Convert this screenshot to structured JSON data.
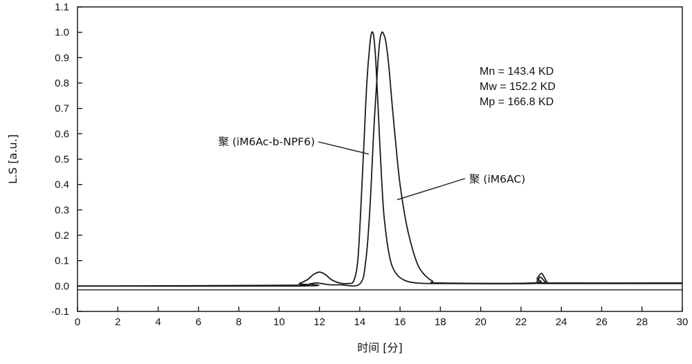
{
  "chart_data": {
    "type": "line",
    "title": "",
    "xlabel": "时间 [分]",
    "ylabel": "L.S [a.u.]",
    "xlim": [
      0,
      30
    ],
    "ylim": [
      -0.1,
      1.1
    ],
    "x_ticks": [
      0,
      2,
      4,
      6,
      8,
      10,
      12,
      14,
      16,
      18,
      20,
      22,
      24,
      26,
      28,
      30
    ],
    "y_ticks": [
      "-0.1",
      "0.0",
      "0.1",
      "0.2",
      "0.3",
      "0.4",
      "0.5",
      "0.6",
      "0.7",
      "0.8",
      "0.9",
      "1.0",
      "1.1"
    ],
    "grid": false,
    "baseline_line_y": -0.015,
    "series": [
      {
        "name": "聚 (iM6Ac-b-NPF6)",
        "x": [
          0,
          10.6,
          11.0,
          11.4,
          11.7,
          12.0,
          12.3,
          12.6,
          13.0,
          13.4,
          13.7,
          13.9,
          14.05,
          14.2,
          14.35,
          14.5,
          14.6,
          14.7,
          14.8,
          14.9,
          15.0,
          15.1,
          15.2,
          15.4,
          15.6,
          15.9,
          16.3,
          16.8,
          17.5,
          18.5,
          22.6,
          22.8,
          22.95,
          23.1,
          23.25,
          23.4,
          30
        ],
        "y": [
          0.0,
          0.003,
          0.01,
          0.025,
          0.045,
          0.055,
          0.045,
          0.025,
          0.012,
          0.01,
          0.02,
          0.1,
          0.3,
          0.55,
          0.8,
          0.95,
          1.0,
          0.98,
          0.88,
          0.72,
          0.55,
          0.4,
          0.28,
          0.15,
          0.08,
          0.04,
          0.02,
          0.012,
          0.01,
          0.01,
          0.01,
          0.02,
          0.035,
          0.025,
          0.012,
          0.01,
          0.01
        ]
      },
      {
        "name": "聚 (iM6AC)",
        "x": [
          0,
          11.0,
          11.5,
          11.8,
          12.1,
          12.5,
          13.0,
          14.0,
          14.3,
          14.5,
          14.7,
          14.9,
          15.0,
          15.1,
          15.2,
          15.3,
          15.45,
          15.6,
          15.8,
          16.0,
          16.3,
          16.6,
          16.9,
          17.2,
          17.6,
          18.0,
          22.6,
          22.8,
          23.0,
          23.15,
          23.3,
          23.5,
          30
        ],
        "y": [
          0.0,
          0.0,
          0.008,
          0.012,
          0.01,
          0.005,
          0.005,
          0.008,
          0.1,
          0.3,
          0.62,
          0.88,
          0.97,
          1.0,
          0.99,
          0.96,
          0.86,
          0.72,
          0.55,
          0.4,
          0.25,
          0.15,
          0.08,
          0.045,
          0.02,
          0.012,
          0.012,
          0.03,
          0.05,
          0.035,
          0.015,
          0.012,
          0.012
        ]
      }
    ],
    "annotations": [
      {
        "text": "聚 (iM6Ac-b-NPF6)",
        "at": [
          14.45,
          0.52
        ],
        "placement": "upper-left"
      },
      {
        "text": "聚 (iM6AC)",
        "at": [
          15.85,
          0.34
        ],
        "placement": "right"
      }
    ],
    "stats": [
      "Mn = 143.4 KD",
      "Mw = 152.2 KD",
      "Mp = 166.8 KD"
    ]
  }
}
